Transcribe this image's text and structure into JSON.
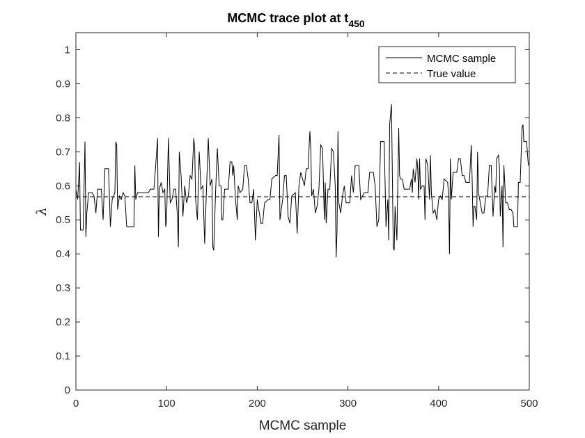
{
  "chart_data": {
    "type": "line",
    "title": {
      "main": "MCMC trace plot at t",
      "subscript": "450"
    },
    "xlabel": "MCMC sample",
    "ylabel": "λ",
    "xlim": [
      0,
      500
    ],
    "ylim": [
      0,
      1.05
    ],
    "xticks": [
      0,
      100,
      200,
      300,
      400,
      500
    ],
    "xtick_labels": [
      "0",
      "100",
      "200",
      "300",
      "400",
      "500"
    ],
    "yticks": [
      0,
      0.1,
      0.2,
      0.3,
      0.4,
      0.5,
      0.6,
      0.7,
      0.8,
      0.9,
      1
    ],
    "ytick_labels": [
      "0",
      "0.1",
      "0.2",
      "0.3",
      "0.4",
      "0.5",
      "0.6",
      "0.7",
      "0.8",
      "0.9",
      "1"
    ],
    "grid": false,
    "legend_position": "top-right",
    "series": [
      {
        "name": "MCMC sample",
        "line_style": "solid",
        "color": "#000000",
        "points": [
          [
            0,
            0.59
          ],
          [
            2,
            0.56
          ],
          [
            4,
            0.67
          ],
          [
            5,
            0.47
          ],
          [
            8,
            0.47
          ],
          [
            10,
            0.73
          ],
          [
            11,
            0.45
          ],
          [
            12,
            0.52
          ],
          [
            14,
            0.58
          ],
          [
            18,
            0.58
          ],
          [
            20,
            0.57
          ],
          [
            22,
            0.52
          ],
          [
            24,
            0.59
          ],
          [
            28,
            0.59
          ],
          [
            30,
            0.5
          ],
          [
            32,
            0.65
          ],
          [
            36,
            0.65
          ],
          [
            38,
            0.48
          ],
          [
            40,
            0.56
          ],
          [
            43,
            0.58
          ],
          [
            44,
            0.73
          ],
          [
            45,
            0.72
          ],
          [
            46,
            0.53
          ],
          [
            48,
            0.57
          ],
          [
            50,
            0.56
          ],
          [
            52,
            0.58
          ],
          [
            54,
            0.57
          ],
          [
            56,
            0.48
          ],
          [
            60,
            0.48
          ],
          [
            64,
            0.48
          ],
          [
            65,
            0.66
          ],
          [
            66,
            0.56
          ],
          [
            68,
            0.58
          ],
          [
            72,
            0.58
          ],
          [
            80,
            0.58
          ],
          [
            82,
            0.59
          ],
          [
            86,
            0.59
          ],
          [
            88,
            0.66
          ],
          [
            90,
            0.74
          ],
          [
            91,
            0.45
          ],
          [
            92,
            0.59
          ],
          [
            94,
            0.61
          ],
          [
            96,
            0.58
          ],
          [
            98,
            0.59
          ],
          [
            99,
            0.48
          ],
          [
            100,
            0.5
          ],
          [
            102,
            0.74
          ],
          [
            104,
            0.55
          ],
          [
            106,
            0.56
          ],
          [
            108,
            0.59
          ],
          [
            110,
            0.59
          ],
          [
            112,
            0.51
          ],
          [
            113,
            0.42
          ],
          [
            114,
            0.7
          ],
          [
            116,
            0.63
          ],
          [
            118,
            0.51
          ],
          [
            120,
            0.6
          ],
          [
            122,
            0.55
          ],
          [
            124,
            0.57
          ],
          [
            126,
            0.63
          ],
          [
            128,
            0.62
          ],
          [
            130,
            0.74
          ],
          [
            131,
            0.71
          ],
          [
            132,
            0.56
          ],
          [
            134,
            0.5
          ],
          [
            136,
            0.7
          ],
          [
            138,
            0.59
          ],
          [
            140,
            0.6
          ],
          [
            142,
            0.43
          ],
          [
            144,
            0.59
          ],
          [
            146,
            0.74
          ],
          [
            148,
            0.6
          ],
          [
            150,
            0.62
          ],
          [
            151,
            0.42
          ],
          [
            152,
            0.41
          ],
          [
            154,
            0.58
          ],
          [
            156,
            0.71
          ],
          [
            158,
            0.6
          ],
          [
            160,
            0.6
          ],
          [
            161,
            0.5
          ],
          [
            162,
            0.5
          ],
          [
            164,
            0.59
          ],
          [
            168,
            0.59
          ],
          [
            170,
            0.67
          ],
          [
            172,
            0.67
          ],
          [
            173,
            0.63
          ],
          [
            174,
            0.66
          ],
          [
            176,
            0.56
          ],
          [
            178,
            0.5
          ],
          [
            179,
            0.6
          ],
          [
            181,
            0.58
          ],
          [
            184,
            0.59
          ],
          [
            186,
            0.66
          ],
          [
            188,
            0.66
          ],
          [
            190,
            0.62
          ],
          [
            192,
            0.55
          ],
          [
            194,
            0.55
          ],
          [
            196,
            0.59
          ],
          [
            198,
            0.44
          ],
          [
            200,
            0.56
          ],
          [
            204,
            0.49
          ],
          [
            206,
            0.49
          ],
          [
            208,
            0.55
          ],
          [
            212,
            0.56
          ],
          [
            214,
            0.56
          ],
          [
            216,
            0.62
          ],
          [
            220,
            0.63
          ],
          [
            222,
            0.63
          ],
          [
            224,
            0.75
          ],
          [
            225,
            0.5
          ],
          [
            228,
            0.56
          ],
          [
            230,
            0.63
          ],
          [
            232,
            0.63
          ],
          [
            234,
            0.51
          ],
          [
            236,
            0.49
          ],
          [
            238,
            0.57
          ],
          [
            242,
            0.58
          ],
          [
            244,
            0.46
          ],
          [
            246,
            0.6
          ],
          [
            248,
            0.64
          ],
          [
            250,
            0.62
          ],
          [
            252,
            0.6
          ],
          [
            254,
            0.65
          ],
          [
            256,
            0.65
          ],
          [
            258,
            0.76
          ],
          [
            259,
            0.71
          ],
          [
            260,
            0.57
          ],
          [
            262,
            0.59
          ],
          [
            264,
            0.52
          ],
          [
            266,
            0.54
          ],
          [
            268,
            0.59
          ],
          [
            270,
            0.72
          ],
          [
            272,
            0.71
          ],
          [
            274,
            0.5
          ],
          [
            275,
            0.61
          ],
          [
            276,
            0.49
          ],
          [
            278,
            0.59
          ],
          [
            280,
            0.59
          ],
          [
            282,
            0.71
          ],
          [
            284,
            0.7
          ],
          [
            286,
            0.6
          ],
          [
            287,
            0.39
          ],
          [
            288,
            0.47
          ],
          [
            289,
            0.76
          ],
          [
            290,
            0.55
          ],
          [
            292,
            0.52
          ],
          [
            294,
            0.57
          ],
          [
            296,
            0.6
          ],
          [
            298,
            0.55
          ],
          [
            302,
            0.55
          ],
          [
            304,
            0.63
          ],
          [
            306,
            0.58
          ],
          [
            308,
            0.66
          ],
          [
            312,
            0.66
          ],
          [
            314,
            0.56
          ],
          [
            316,
            0.57
          ],
          [
            318,
            0.58
          ],
          [
            320,
            0.58
          ],
          [
            322,
            0.58
          ],
          [
            324,
            0.64
          ],
          [
            328,
            0.64
          ],
          [
            330,
            0.6
          ],
          [
            332,
            0.48
          ],
          [
            334,
            0.5
          ],
          [
            336,
            0.73
          ],
          [
            340,
            0.73
          ],
          [
            342,
            0.48
          ],
          [
            344,
            0.56
          ],
          [
            345,
            0.44
          ],
          [
            346,
            0.78
          ],
          [
            348,
            0.84
          ],
          [
            350,
            0.42
          ],
          [
            351,
            0.41
          ],
          [
            352,
            0.54
          ],
          [
            354,
            0.44
          ],
          [
            356,
            0.77
          ],
          [
            357,
            0.63
          ],
          [
            358,
            0.62
          ],
          [
            360,
            0.62
          ],
          [
            362,
            0.59
          ],
          [
            364,
            0.59
          ],
          [
            368,
            0.59
          ],
          [
            370,
            0.62
          ],
          [
            371,
            0.58
          ],
          [
            372,
            0.65
          ],
          [
            374,
            0.61
          ],
          [
            376,
            0.68
          ],
          [
            377,
            0.65
          ],
          [
            378,
            0.56
          ],
          [
            379,
            0.68
          ],
          [
            380,
            0.59
          ],
          [
            382,
            0.6
          ],
          [
            384,
            0.6
          ],
          [
            385,
            0.5
          ],
          [
            386,
            0.68
          ],
          [
            388,
            0.66
          ],
          [
            390,
            0.56
          ],
          [
            391,
            0.69
          ],
          [
            392,
            0.58
          ],
          [
            394,
            0.52
          ],
          [
            396,
            0.53
          ],
          [
            398,
            0.5
          ],
          [
            400,
            0.56
          ],
          [
            402,
            0.57
          ],
          [
            404,
            0.56
          ],
          [
            406,
            0.62
          ],
          [
            410,
            0.61
          ],
          [
            411,
            0.57
          ],
          [
            412,
            0.4
          ],
          [
            413,
            0.68
          ],
          [
            414,
            0.56
          ],
          [
            416,
            0.64
          ],
          [
            420,
            0.64
          ],
          [
            422,
            0.68
          ],
          [
            424,
            0.68
          ],
          [
            426,
            0.63
          ],
          [
            428,
            0.63
          ],
          [
            430,
            0.61
          ],
          [
            434,
            0.61
          ],
          [
            436,
            0.72
          ],
          [
            437,
            0.62
          ],
          [
            438,
            0.48
          ],
          [
            439,
            0.54
          ],
          [
            440,
            0.54
          ],
          [
            442,
            0.5
          ],
          [
            443,
            0.7
          ],
          [
            444,
            0.58
          ],
          [
            446,
            0.55
          ],
          [
            448,
            0.52
          ],
          [
            450,
            0.52
          ],
          [
            452,
            0.57
          ],
          [
            454,
            0.57
          ],
          [
            456,
            0.66
          ],
          [
            458,
            0.66
          ],
          [
            460,
            0.51
          ],
          [
            462,
            0.6
          ],
          [
            463,
            0.58
          ],
          [
            464,
            0.68
          ],
          [
            466,
            0.69
          ],
          [
            467,
            0.66
          ],
          [
            468,
            0.51
          ],
          [
            470,
            0.6
          ],
          [
            471,
            0.42
          ],
          [
            472,
            0.66
          ],
          [
            474,
            0.55
          ],
          [
            476,
            0.55
          ],
          [
            478,
            0.53
          ],
          [
            480,
            0.53
          ],
          [
            482,
            0.52
          ],
          [
            483,
            0.48
          ],
          [
            487,
            0.48
          ],
          [
            488,
            0.61
          ],
          [
            490,
            0.61
          ],
          [
            492,
            0.77
          ],
          [
            493,
            0.78
          ],
          [
            494,
            0.73
          ],
          [
            497,
            0.73
          ],
          [
            499,
            0.66
          ]
        ]
      },
      {
        "name": "True value",
        "line_style": "dashed",
        "color": "#000000",
        "points": [
          [
            0,
            0.568
          ],
          [
            500,
            0.568
          ]
        ]
      }
    ]
  }
}
